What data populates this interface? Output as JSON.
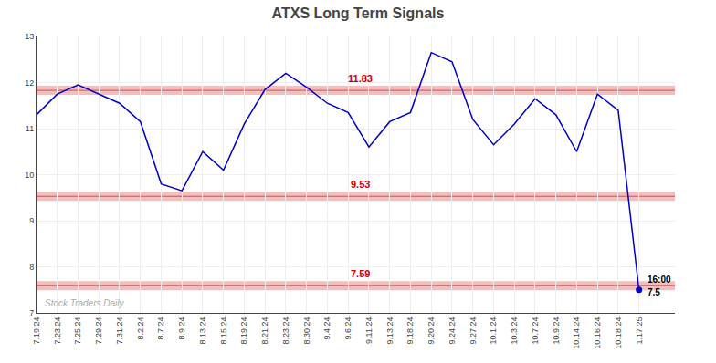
{
  "chart_data": {
    "type": "line",
    "title": "ATXS Long Term Signals",
    "categories": [
      "7.19.24",
      "7.23.24",
      "7.25.24",
      "7.29.24",
      "7.31.24",
      "8.2.24",
      "8.7.24",
      "8.9.24",
      "8.13.24",
      "8.15.24",
      "8.19.24",
      "8.21.24",
      "8.23.24",
      "8.30.24",
      "9.4.24",
      "9.6.24",
      "9.11.24",
      "9.13.24",
      "9.18.24",
      "9.20.24",
      "9.24.24",
      "9.27.24",
      "10.1.24",
      "10.3.24",
      "10.7.24",
      "10.9.24",
      "10.14.24",
      "10.16.24",
      "10.18.24",
      "1.17.25"
    ],
    "values": [
      11.3,
      11.75,
      11.95,
      11.75,
      11.55,
      11.15,
      9.8,
      9.65,
      10.5,
      10.1,
      11.1,
      11.85,
      12.2,
      11.9,
      11.55,
      11.35,
      10.6,
      11.15,
      11.35,
      12.65,
      12.45,
      11.2,
      10.65,
      11.1,
      11.65,
      11.3,
      10.5,
      11.75,
      11.4,
      7.5
    ],
    "color": "#0000cc",
    "hlines": {
      "values": [
        11.83,
        9.53,
        7.59
      ],
      "color": "#cc0000"
    },
    "annotations": [
      {
        "text": "16:00",
        "category": "1.17.25"
      },
      {
        "text": "7.5",
        "category": "1.17.25",
        "value": 7.5
      },
      {
        "text": "Stock Traders Daily"
      }
    ],
    "ylim": [
      7.0,
      13.0
    ],
    "yticks": [
      7,
      8,
      9,
      10,
      11,
      12,
      13
    ],
    "grid": true
  }
}
